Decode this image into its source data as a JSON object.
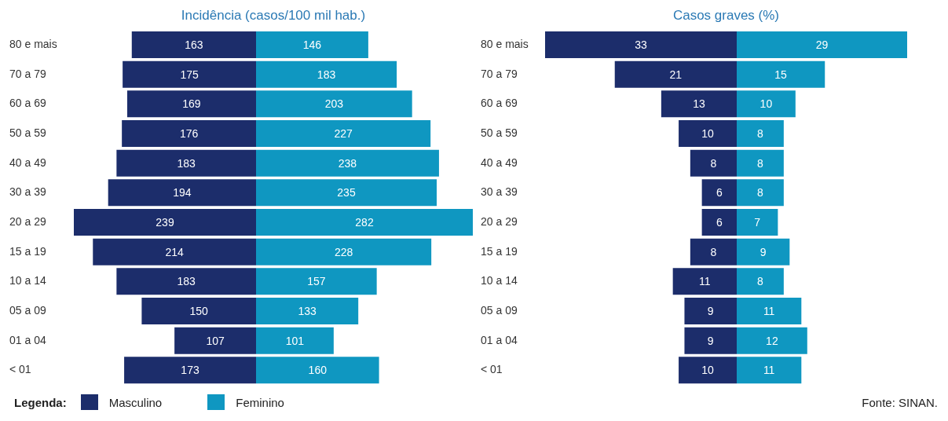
{
  "chart_data": [
    {
      "type": "bar",
      "orientation": "horizontal",
      "title": "Incidência (casos/100 mil hab.)",
      "categories": [
        "80 e mais",
        "70 a 79",
        "60 a 69",
        "50 a 59",
        "40 a 49",
        "30 a 39",
        "20 a 29",
        "15 a 19",
        "10 a 14",
        "05 a 09",
        "01 a 04",
        "< 01"
      ],
      "xlim": [
        239,
        0
      ],
      "tick_labels": "y",
      "legend": "bottom",
      "legend_title": "Legenda:",
      "data_labels": true,
      "series": [
        {
          "name": "Masculino",
          "color": "#1c2d6b",
          "values": [
            163,
            175,
            169,
            176,
            183,
            194,
            239,
            214,
            183,
            150,
            107,
            173
          ]
        }
      ]
    },
    {
      "type": "bar",
      "orientation": "horizontal",
      "categories": [
        null,
        null,
        null,
        null,
        null,
        null,
        null,
        null,
        null,
        null,
        null,
        null
      ],
      "xlim": [
        0,
        282
      ],
      "tick_labels": false,
      "data_labels": true,
      "series": [
        {
          "name": "Feminino",
          "color": "#0f97c1",
          "values": [
            146,
            183,
            203,
            227,
            238,
            235,
            282,
            228,
            157,
            133,
            101,
            160
          ]
        }
      ]
    },
    {
      "type": "bar",
      "orientation": "horizontal",
      "title": "Casos graves (%)",
      "categories": [
        "80 e mais",
        "70 a 79",
        "60 a 69",
        "50 a 59",
        "40 a 49",
        "30 a 39",
        "20 a 29",
        "15 a 19",
        "10 a 14",
        "05 a 09",
        "01 a 04",
        "< 01"
      ],
      "xlim": [
        33,
        0
      ],
      "tick_labels": "y",
      "data_labels": true,
      "series": [
        {
          "color": "#1c2d6b",
          "values": [
            33,
            21,
            13,
            10,
            8,
            6,
            6,
            8,
            11,
            9,
            9,
            10
          ]
        }
      ]
    },
    {
      "type": "bar",
      "orientation": "horizontal",
      "categories": [
        null,
        null,
        null,
        null,
        null,
        null,
        null,
        null,
        null,
        null,
        null,
        null
      ],
      "xlim": [
        0,
        29
      ],
      "tick_labels": false,
      "annotations": [
        "Fonte: SINAN."
      ],
      "data_labels": true,
      "series": [
        {
          "color": "#0f97c1",
          "values": [
            29,
            15,
            10,
            8,
            8,
            8,
            7,
            9,
            8,
            11,
            12,
            11
          ]
        }
      ]
    }
  ]
}
